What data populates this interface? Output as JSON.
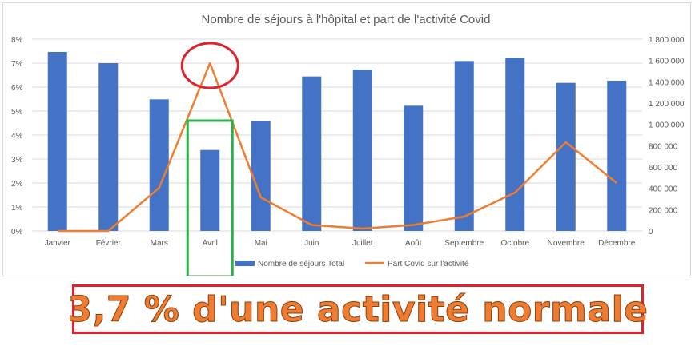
{
  "chart_data": {
    "type": "bar",
    "title": "Nombre de séjours à l'hôpital et part de l'activité Covid",
    "categories": [
      "Janvier",
      "Février",
      "Mars",
      "Avril",
      "Mai",
      "Juin",
      "Juillet",
      "Août",
      "Septembre",
      "Octobre",
      "Novembre",
      "Décembre"
    ],
    "series": [
      {
        "name": "Nombre de séjours Total",
        "type": "bar",
        "axis": "right",
        "color": "#4472c4",
        "values": [
          1680000,
          1575000,
          1235000,
          760000,
          1030000,
          1450000,
          1515000,
          1175000,
          1595000,
          1625000,
          1390000,
          1410000
        ]
      },
      {
        "name": "Part Covid sur l'activité",
        "type": "line",
        "axis": "left",
        "color": "#ed7d31",
        "values": [
          0.0,
          0.0,
          1.8,
          7.0,
          1.4,
          0.25,
          0.1,
          0.25,
          0.6,
          1.6,
          3.7,
          2.0
        ]
      }
    ],
    "y_left": {
      "ylim": [
        0,
        8
      ],
      "ticks": [
        "0%",
        "1%",
        "2%",
        "3%",
        "4%",
        "5%",
        "6%",
        "7%",
        "8%"
      ]
    },
    "y_right": {
      "ylim": [
        0,
        1800000
      ],
      "ticks": [
        "0",
        "200 000",
        "400 000",
        "600 000",
        "800 000",
        "1 000 000",
        "1 200 000",
        "1 400 000",
        "1 600 000",
        "1 800 000"
      ]
    },
    "grid": true,
    "legend": "bottom",
    "annotations": [
      {
        "shape": "ellipse",
        "color": "#e0232a",
        "category": "Avril",
        "series": "Part Covid sur l'activité"
      },
      {
        "shape": "rectangle",
        "color": "#27b34a",
        "category": "Avril",
        "series": "Nombre de séjours Total"
      }
    ]
  },
  "banner": {
    "text": "3,7 % d'une activité normale",
    "text_color": "#ee7d31",
    "border_color": "#e0232a"
  }
}
